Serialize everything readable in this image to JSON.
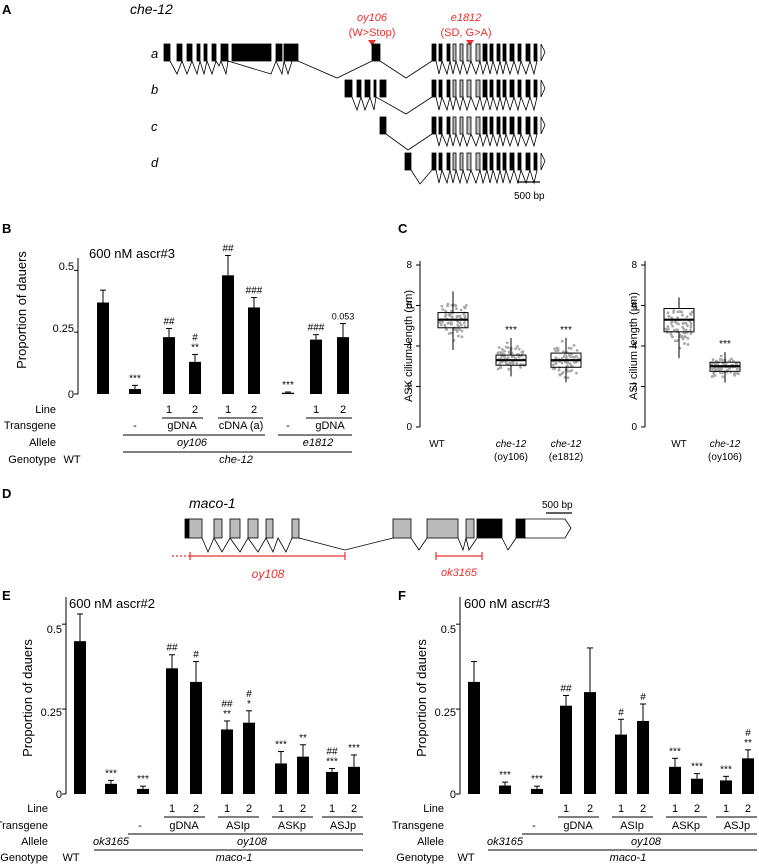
{
  "panels": {
    "A": {
      "label": "A",
      "gene": "che-12",
      "isoforms": [
        "a",
        "b",
        "c",
        "d"
      ],
      "mut1": {
        "name": "oy106",
        "desc": "(W>Stop)"
      },
      "mut2": {
        "name": "e1812",
        "desc": "(SD, G>A)"
      },
      "scale": "500 bp"
    },
    "B": {
      "label": "B",
      "title": "600 nM ascr#3",
      "ylabel": "Proportion of dauers",
      "yticks": [
        "0",
        "0.25",
        "0.5"
      ],
      "p_value_text": "0.053",
      "rows": {
        "line_label": "Line",
        "transgene_label": "Transgene",
        "allele_label": "Allele",
        "genotype_label": "Genotype",
        "line_values": [
          "1",
          "2",
          "1",
          "2",
          "1",
          "2"
        ],
        "transgene_values": [
          "-",
          "gDNA",
          "cDNA (a)",
          "-",
          "gDNA"
        ],
        "allele_values": [
          "oy106",
          "e1812"
        ],
        "genotype_values": [
          "WT",
          "che-12"
        ]
      }
    },
    "C": {
      "label": "C",
      "ask_ylabel": "ASK cilium length (μm)",
      "asi_ylabel": "ASI cilium length (μm)",
      "yticks": [
        "0",
        "2",
        "4",
        "6",
        "8"
      ],
      "ask_groups": [
        {
          "name": "WT",
          "sub": ""
        },
        {
          "name": "che-12",
          "sub": "(oy106)"
        },
        {
          "name": "che-12",
          "sub": "(e1812)"
        }
      ],
      "asi_groups": [
        {
          "name": "WT",
          "sub": ""
        },
        {
          "name": "che-12",
          "sub": "(oy106)"
        }
      ]
    },
    "D": {
      "label": "D",
      "gene": "maco-1",
      "scale": "500 bp",
      "del1": "oy108",
      "del2": "ok3165"
    },
    "E": {
      "label": "E",
      "title": "600 nM ascr#2",
      "ylabel": "Proportion of dauers",
      "yticks": [
        "0",
        "0.25",
        "0.5"
      ],
      "rows": {
        "line_label": "Line",
        "transgene_label": "Transgene",
        "allele_label": "Allele",
        "genotype_label": "Genotype",
        "line_values": [
          "1",
          "2",
          "1",
          "2",
          "1",
          "2",
          "1",
          "2"
        ],
        "transgene_values": [
          "-",
          "gDNA",
          "ASIp",
          "ASKp",
          "ASJp"
        ],
        "allele_values": [
          "ok3165",
          "oy108"
        ],
        "genotype_values": [
          "WT",
          "maco-1"
        ]
      }
    },
    "F": {
      "label": "F",
      "title": "600 nM ascr#3",
      "ylabel": "Proportion of dauers",
      "yticks": [
        "0",
        "0.25",
        "0.5"
      ],
      "rows": {
        "line_label": "Line",
        "transgene_label": "Transgene",
        "allele_label": "Allele",
        "genotype_label": "Genotype",
        "line_values": [
          "1",
          "2",
          "1",
          "2",
          "1",
          "2",
          "1",
          "2"
        ],
        "transgene_values": [
          "-",
          "gDNA",
          "ASIp",
          "ASKp",
          "ASJp"
        ],
        "allele_values": [
          "ok3165",
          "oy108"
        ],
        "genotype_values": [
          "WT",
          "maco-1"
        ]
      }
    }
  },
  "chart_data": [
    {
      "type": "bar",
      "panel": "B",
      "title": "600 nM ascr#3",
      "ylabel": "Proportion of dauers",
      "ylim": [
        0,
        0.55
      ],
      "categories": [
        "WT",
        "oy106",
        "oy106 gDNA 1",
        "oy106 gDNA 2",
        "oy106 cDNA (a) 1",
        "oy106 cDNA (a) 2",
        "e1812",
        "e1812 gDNA 1",
        "e1812 gDNA 2"
      ],
      "values": [
        0.37,
        0.02,
        0.23,
        0.13,
        0.48,
        0.35,
        0.005,
        0.22,
        0.23
      ],
      "errors": [
        0.05,
        0.015,
        0.035,
        0.03,
        0.08,
        0.04,
        0.003,
        0.02,
        0.055
      ],
      "annotations": [
        "",
        "***",
        "##",
        "#\n**",
        "##",
        "###",
        "***",
        "###",
        "0.053"
      ]
    },
    {
      "type": "box",
      "panel": "C-ASK",
      "ylabel": "ASK cilium length (μm)",
      "ylim": [
        0,
        8
      ],
      "categories": [
        "WT",
        "che-12 (oy106)",
        "che-12 (e1812)"
      ],
      "median": [
        5.3,
        3.3,
        3.3
      ],
      "q1": [
        4.9,
        3.05,
        2.95
      ],
      "q3": [
        5.65,
        3.55,
        3.65
      ],
      "whisker_low": [
        3.8,
        2.5,
        2.2
      ],
      "whisker_high": [
        6.7,
        4.4,
        4.4
      ],
      "annotations": [
        "",
        "***",
        "***"
      ]
    },
    {
      "type": "box",
      "panel": "C-ASI",
      "ylabel": "ASI cilium length (μm)",
      "ylim": [
        0,
        8
      ],
      "categories": [
        "WT",
        "che-12 (oy106)"
      ],
      "median": [
        5.3,
        3.0
      ],
      "q1": [
        4.7,
        2.75
      ],
      "q3": [
        5.85,
        3.2
      ],
      "whisker_low": [
        3.4,
        2.2
      ],
      "whisker_high": [
        6.4,
        3.7
      ],
      "annotations": [
        "",
        "***"
      ]
    },
    {
      "type": "bar",
      "panel": "E",
      "title": "600 nM ascr#2",
      "ylabel": "Proportion of dauers",
      "ylim": [
        0,
        0.58
      ],
      "categories": [
        "WT",
        "ok3165",
        "oy108",
        "gDNA 1",
        "gDNA 2",
        "ASIp 1",
        "ASIp 2",
        "ASKp 1",
        "ASKp 2",
        "ASJp 1",
        "ASJp 2"
      ],
      "values": [
        0.45,
        0.03,
        0.015,
        0.37,
        0.33,
        0.19,
        0.21,
        0.09,
        0.11,
        0.065,
        0.08
      ],
      "errors": [
        0.08,
        0.01,
        0.008,
        0.04,
        0.06,
        0.025,
        0.035,
        0.035,
        0.035,
        0.01,
        0.035
      ],
      "annotations": [
        "",
        "***",
        "***",
        "##",
        "#",
        "##\n**",
        "#\n*",
        "***",
        "**",
        "##\n***",
        "***"
      ]
    },
    {
      "type": "bar",
      "panel": "F",
      "title": "600 nM ascr#3",
      "ylabel": "Proportion of dauers",
      "ylim": [
        0,
        0.58
      ],
      "categories": [
        "WT",
        "ok3165",
        "oy108",
        "gDNA 1",
        "gDNA 2",
        "ASIp 1",
        "ASIp 2",
        "ASKp 1",
        "ASKp 2",
        "ASJp 1",
        "ASJp 2"
      ],
      "values": [
        0.33,
        0.025,
        0.015,
        0.26,
        0.3,
        0.175,
        0.215,
        0.08,
        0.045,
        0.04,
        0.105
      ],
      "errors": [
        0.06,
        0.01,
        0.008,
        0.03,
        0.13,
        0.045,
        0.05,
        0.025,
        0.015,
        0.012,
        0.025
      ],
      "annotations": [
        "",
        "***",
        "***",
        "##",
        "",
        "#",
        "#",
        "***",
        "***",
        "***",
        "#\n**"
      ]
    }
  ]
}
